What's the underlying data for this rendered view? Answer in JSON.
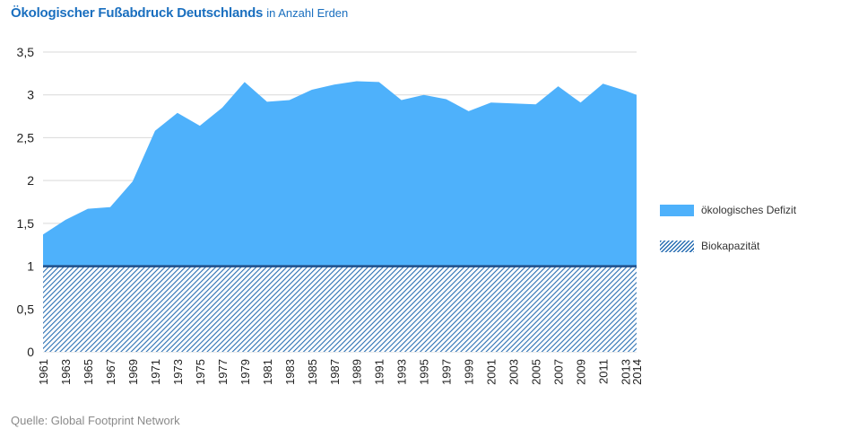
{
  "header": {
    "title": "Ökologischer Fußabdruck Deutschlands",
    "subtitle": "in Anzahl Erden"
  },
  "source": "Quelle: Global Footprint Network",
  "colors": {
    "deficit": "#4eb1fb",
    "biocapacity_hatch": "#2a6fb3",
    "biocapacity_line": "#1f4f8a",
    "grid": "#d9d9d9",
    "axis_text": "#222222"
  },
  "chart_data": {
    "type": "area",
    "title": "Ökologischer Fußabdruck Deutschlands",
    "subtitle": "in Anzahl Erden",
    "xlabel": "",
    "ylabel": "",
    "ylim": [
      0,
      3.5
    ],
    "grid": true,
    "legend_position": "right",
    "y_ticks": [
      "0",
      "0,5",
      "1",
      "1,5",
      "2",
      "2,5",
      "3",
      "3,5"
    ],
    "x_ticks": [
      "1961",
      "1963",
      "1965",
      "1967",
      "1969",
      "1971",
      "1973",
      "1975",
      "1977",
      "1979",
      "1981",
      "1983",
      "1985",
      "1987",
      "1989",
      "1991",
      "1993",
      "1995",
      "1997",
      "1999",
      "2001",
      "2003",
      "2005",
      "2007",
      "2009",
      "2011",
      "2013",
      "2014"
    ],
    "x": [
      1961,
      1963,
      1965,
      1967,
      1969,
      1971,
      1973,
      1975,
      1977,
      1979,
      1981,
      1983,
      1985,
      1987,
      1989,
      1991,
      1993,
      1995,
      1997,
      1999,
      2001,
      2003,
      2005,
      2007,
      2009,
      2011,
      2013,
      2014
    ],
    "series": [
      {
        "name": "ökologisches Defizit",
        "values": [
          1.37,
          1.54,
          1.67,
          1.69,
          1.99,
          2.58,
          2.79,
          2.64,
          2.85,
          3.15,
          2.92,
          2.94,
          3.06,
          3.12,
          3.16,
          3.15,
          2.94,
          3.0,
          2.95,
          2.81,
          2.91,
          2.9,
          2.89,
          3.1,
          2.91,
          3.13,
          3.05,
          3.0
        ]
      },
      {
        "name": "Biokapazität",
        "values": [
          1,
          1,
          1,
          1,
          1,
          1,
          1,
          1,
          1,
          1,
          1,
          1,
          1,
          1,
          1,
          1,
          1,
          1,
          1,
          1,
          1,
          1,
          1,
          1,
          1,
          1,
          1,
          1
        ]
      }
    ]
  }
}
